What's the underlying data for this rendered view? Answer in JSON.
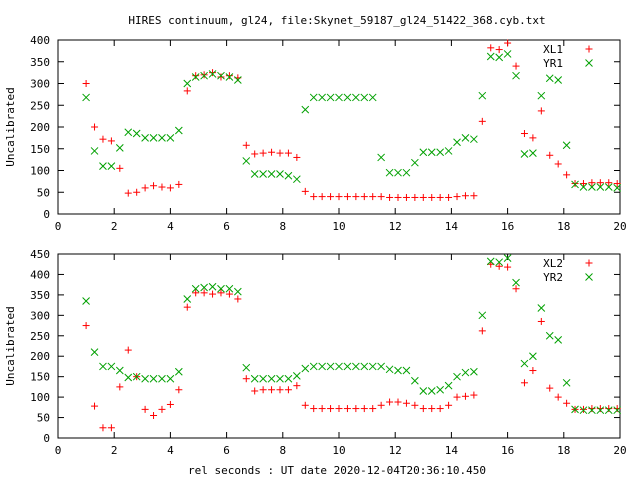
{
  "title": "HIRES continuum, gl24, file:Skynet_59187_gl24_51422_368.cyb.txt",
  "xlabel": "rel seconds : UT date 2020-12-04T20:36:10.450",
  "colors": {
    "L": "#ff0000",
    "R": "#00a000"
  },
  "chart_data": [
    {
      "type": "scatter",
      "title": "HIRES continuum, gl24, file:Skynet_59187_gl24_51422_368.cyb.txt",
      "xlabel": "",
      "ylabel": "Uncalibrated",
      "xlim": [
        0,
        20
      ],
      "ylim": [
        0,
        400
      ],
      "xticks": [
        0,
        2,
        4,
        6,
        8,
        10,
        12,
        14,
        16,
        18,
        20
      ],
      "yticks": [
        0,
        50,
        100,
        150,
        200,
        250,
        300,
        350,
        400
      ],
      "legend_position": "top-right",
      "series": [
        {
          "name": "XL1",
          "marker": "plus",
          "color": "#ff0000",
          "x": [
            1.0,
            1.3,
            1.6,
            1.9,
            2.2,
            2.5,
            2.8,
            3.1,
            3.4,
            3.7,
            4.0,
            4.3,
            4.6,
            4.9,
            5.2,
            5.5,
            5.8,
            6.1,
            6.4,
            6.7,
            7.0,
            7.3,
            7.6,
            7.9,
            8.2,
            8.5,
            8.8,
            9.1,
            9.4,
            9.7,
            10.0,
            10.3,
            10.6,
            10.9,
            11.2,
            11.5,
            11.8,
            12.1,
            12.4,
            12.7,
            13.0,
            13.3,
            13.6,
            13.9,
            14.2,
            14.5,
            14.8,
            15.1,
            15.4,
            15.7,
            16.0,
            16.3,
            16.6,
            16.9,
            17.2,
            17.5,
            17.8,
            18.1,
            18.4,
            18.7,
            19.0,
            19.3,
            19.6,
            19.9
          ],
          "values": [
            300,
            200,
            172,
            168,
            105,
            48,
            50,
            60,
            65,
            62,
            60,
            68,
            283,
            318,
            320,
            325,
            315,
            318,
            313,
            158,
            138,
            140,
            142,
            140,
            140,
            130,
            52,
            40,
            40,
            40,
            40,
            40,
            40,
            40,
            40,
            40,
            38,
            38,
            38,
            38,
            38,
            38,
            38,
            38,
            40,
            42,
            42,
            213,
            382,
            378,
            393,
            340,
            185,
            175,
            237,
            135,
            115,
            90,
            70,
            70,
            72,
            72,
            72,
            70
          ]
        },
        {
          "name": "YR1",
          "marker": "cross",
          "color": "#00a000",
          "x": [
            1.0,
            1.3,
            1.6,
            1.9,
            2.2,
            2.5,
            2.8,
            3.1,
            3.4,
            3.7,
            4.0,
            4.3,
            4.6,
            4.9,
            5.2,
            5.5,
            5.8,
            6.1,
            6.4,
            6.7,
            7.0,
            7.3,
            7.6,
            7.9,
            8.2,
            8.5,
            8.8,
            9.1,
            9.4,
            9.7,
            10.0,
            10.3,
            10.6,
            10.9,
            11.2,
            11.5,
            11.8,
            12.1,
            12.4,
            12.7,
            13.0,
            13.3,
            13.6,
            13.9,
            14.2,
            14.5,
            14.8,
            15.1,
            15.4,
            15.7,
            16.0,
            16.3,
            16.6,
            16.9,
            17.2,
            17.5,
            17.8,
            18.1,
            18.4,
            18.7,
            19.0,
            19.3,
            19.6,
            19.9
          ],
          "values": [
            268,
            145,
            110,
            110,
            152,
            188,
            185,
            175,
            175,
            175,
            175,
            192,
            300,
            315,
            318,
            322,
            318,
            315,
            308,
            122,
            92,
            92,
            92,
            92,
            88,
            80,
            240,
            268,
            268,
            268,
            268,
            268,
            268,
            268,
            268,
            130,
            95,
            95,
            95,
            118,
            142,
            142,
            142,
            145,
            165,
            175,
            172,
            272,
            362,
            360,
            368,
            318,
            138,
            140,
            272,
            312,
            308,
            158,
            68,
            62,
            62,
            62,
            62,
            60
          ]
        }
      ]
    },
    {
      "type": "scatter",
      "title": "",
      "xlabel": "rel seconds : UT date 2020-12-04T20:36:10.450",
      "ylabel": "Uncalibrated",
      "xlim": [
        0,
        20
      ],
      "ylim": [
        0,
        450
      ],
      "xticks": [
        0,
        2,
        4,
        6,
        8,
        10,
        12,
        14,
        16,
        18,
        20
      ],
      "yticks": [
        0,
        50,
        100,
        150,
        200,
        250,
        300,
        350,
        400,
        450
      ],
      "legend_position": "top-right",
      "series": [
        {
          "name": "XL2",
          "marker": "plus",
          "color": "#ff0000",
          "x": [
            1.0,
            1.3,
            1.6,
            1.9,
            2.2,
            2.5,
            2.8,
            3.1,
            3.4,
            3.7,
            4.0,
            4.3,
            4.6,
            4.9,
            5.2,
            5.5,
            5.8,
            6.1,
            6.4,
            6.7,
            7.0,
            7.3,
            7.6,
            7.9,
            8.2,
            8.5,
            8.8,
            9.1,
            9.4,
            9.7,
            10.0,
            10.3,
            10.6,
            10.9,
            11.2,
            11.5,
            11.8,
            12.1,
            12.4,
            12.7,
            13.0,
            13.3,
            13.6,
            13.9,
            14.2,
            14.5,
            14.8,
            15.1,
            15.4,
            15.7,
            16.0,
            16.3,
            16.6,
            16.9,
            17.2,
            17.5,
            17.8,
            18.1,
            18.4,
            18.7,
            19.0,
            19.3,
            19.6,
            19.9
          ],
          "values": [
            275,
            78,
            25,
            25,
            125,
            215,
            150,
            70,
            55,
            70,
            82,
            118,
            320,
            355,
            355,
            352,
            355,
            352,
            340,
            145,
            115,
            118,
            118,
            118,
            118,
            128,
            80,
            72,
            72,
            72,
            72,
            72,
            72,
            72,
            72,
            80,
            88,
            88,
            85,
            80,
            72,
            72,
            72,
            80,
            100,
            102,
            105,
            262,
            425,
            420,
            418,
            365,
            135,
            165,
            285,
            122,
            100,
            85,
            70,
            70,
            72,
            72,
            72,
            72
          ]
        },
        {
          "name": "YR2",
          "marker": "cross",
          "color": "#00a000",
          "x": [
            1.0,
            1.3,
            1.6,
            1.9,
            2.2,
            2.5,
            2.8,
            3.1,
            3.4,
            3.7,
            4.0,
            4.3,
            4.6,
            4.9,
            5.2,
            5.5,
            5.8,
            6.1,
            6.4,
            6.7,
            7.0,
            7.3,
            7.6,
            7.9,
            8.2,
            8.5,
            8.8,
            9.1,
            9.4,
            9.7,
            10.0,
            10.3,
            10.6,
            10.9,
            11.2,
            11.5,
            11.8,
            12.1,
            12.4,
            12.7,
            13.0,
            13.3,
            13.6,
            13.9,
            14.2,
            14.5,
            14.8,
            15.1,
            15.4,
            15.7,
            16.0,
            16.3,
            16.6,
            16.9,
            17.2,
            17.5,
            17.8,
            18.1,
            18.4,
            18.7,
            19.0,
            19.3,
            19.6,
            19.9
          ],
          "values": [
            335,
            210,
            175,
            175,
            165,
            148,
            150,
            145,
            145,
            145,
            145,
            162,
            340,
            365,
            368,
            370,
            365,
            365,
            358,
            172,
            145,
            145,
            145,
            145,
            145,
            152,
            170,
            175,
            175,
            175,
            175,
            175,
            175,
            175,
            175,
            175,
            168,
            165,
            165,
            140,
            115,
            115,
            118,
            128,
            150,
            160,
            162,
            300,
            432,
            430,
            440,
            380,
            182,
            200,
            318,
            250,
            240,
            135,
            70,
            68,
            68,
            68,
            68,
            68
          ]
        }
      ]
    }
  ]
}
